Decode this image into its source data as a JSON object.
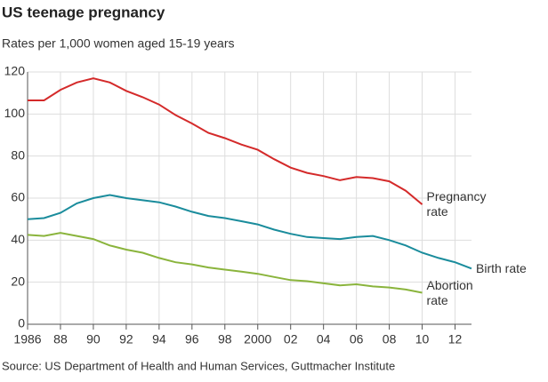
{
  "chart_data": {
    "type": "line",
    "title": "US teenage pregnancy",
    "subtitle": "Rates per 1,000 women aged 15-19 years",
    "source": "Source: US Department of Health and Human Services, Guttmacher Institute",
    "x": [
      1986,
      1987,
      1988,
      1989,
      1990,
      1991,
      1992,
      1993,
      1994,
      1995,
      1996,
      1997,
      1998,
      1999,
      2000,
      2001,
      2002,
      2003,
      2004,
      2005,
      2006,
      2007,
      2008,
      2009,
      2010,
      2011,
      2012,
      2013
    ],
    "series": [
      {
        "name": "Pregnancy rate",
        "color": "#d42a2a",
        "values": [
          106.5,
          106.5,
          111.5,
          115,
          117,
          115,
          111,
          108,
          104.5,
          99.5,
          95.5,
          91,
          88.5,
          85.5,
          83,
          78.5,
          74.5,
          72,
          70.5,
          68.5,
          70,
          69.5,
          68,
          63.5,
          57,
          null,
          null,
          null
        ]
      },
      {
        "name": "Birth rate",
        "color": "#1a8c9c",
        "values": [
          50,
          50.5,
          53,
          57.5,
          60,
          61.5,
          60,
          59,
          58,
          56,
          53.5,
          51.5,
          50.5,
          49,
          47.5,
          45,
          43,
          41.5,
          41,
          40.5,
          41.5,
          42,
          40,
          37.5,
          34,
          31.5,
          29.5,
          26.5
        ]
      },
      {
        "name": "Abortion rate",
        "color": "#8ab43c",
        "values": [
          42.5,
          42,
          43.5,
          42,
          40.5,
          37.5,
          35.5,
          34,
          31.5,
          29.5,
          28.5,
          27,
          26,
          25,
          24,
          22.5,
          21,
          20.5,
          19.5,
          18.5,
          19,
          18,
          17.5,
          16.5,
          15,
          null,
          null,
          null
        ]
      }
    ],
    "xlim": [
      1986,
      2013
    ],
    "xticks": [
      1986,
      {
        "value": 1988,
        "label": "88"
      },
      {
        "value": 1990,
        "label": "90"
      },
      {
        "value": 1992,
        "label": "92"
      },
      {
        "value": 1994,
        "label": "94"
      },
      {
        "value": 1996,
        "label": "96"
      },
      {
        "value": 1998,
        "label": "98"
      },
      2000,
      {
        "value": 2002,
        "label": "02"
      },
      {
        "value": 2004,
        "label": "04"
      },
      {
        "value": 2006,
        "label": "06"
      },
      {
        "value": 2008,
        "label": "08"
      },
      {
        "value": 2010,
        "label": "10"
      },
      {
        "value": 2012,
        "label": "12"
      }
    ],
    "ylim": [
      0,
      120
    ],
    "yticks": [
      0,
      20,
      40,
      60,
      80,
      100,
      120
    ],
    "grid": true
  }
}
